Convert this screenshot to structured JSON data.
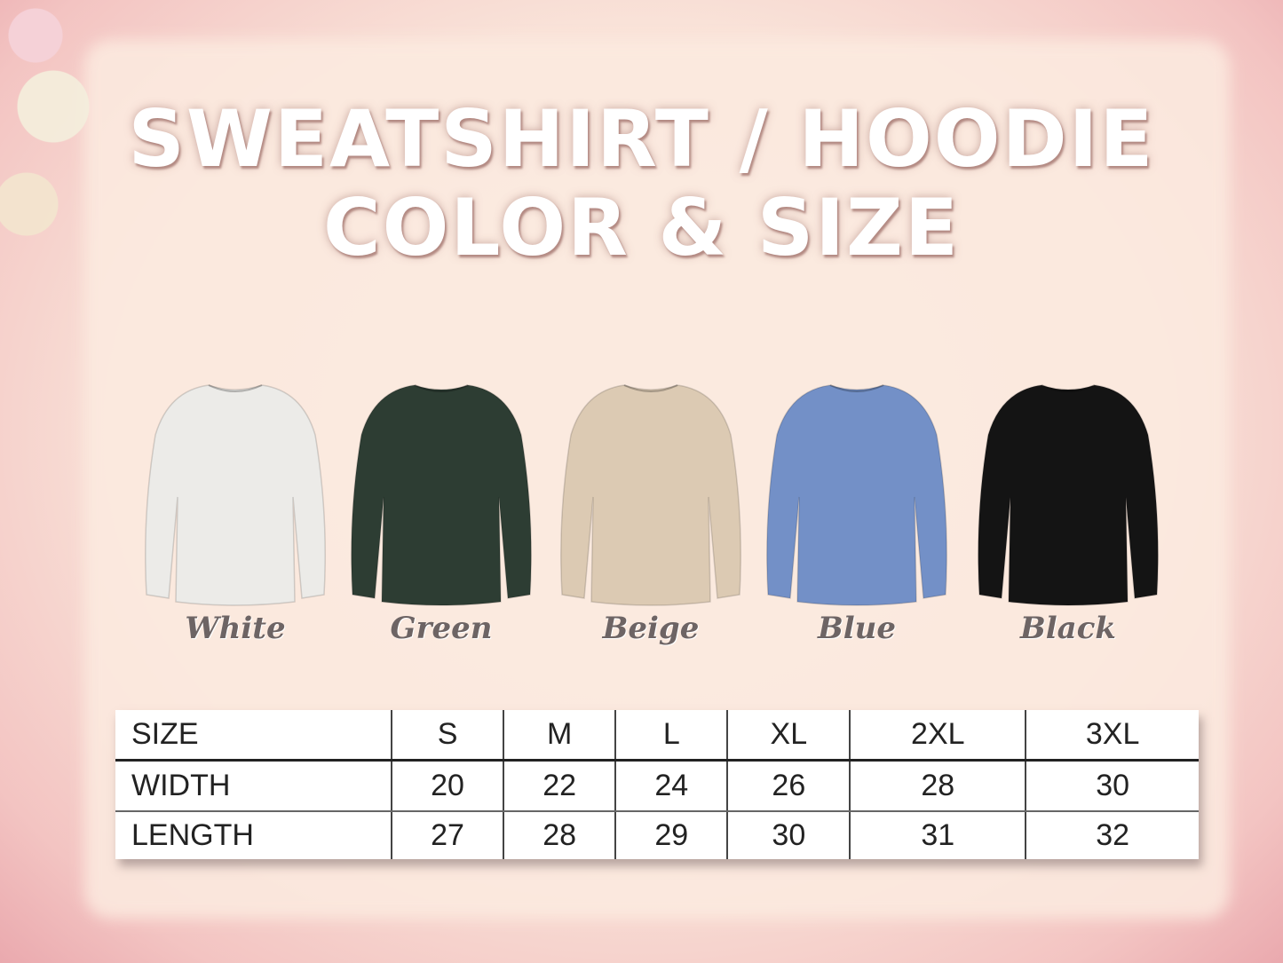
{
  "title": {
    "line1": "SWEATSHIRT / HOODIE",
    "line2": "COLOR & SIZE"
  },
  "colors": [
    {
      "label": "White",
      "hex": "#ecebe8"
    },
    {
      "label": "Green",
      "hex": "#2d3d33"
    },
    {
      "label": "Beige",
      "hex": "#dccab3"
    },
    {
      "label": "Blue",
      "hex": "#7390c7"
    },
    {
      "label": "Black",
      "hex": "#141414"
    }
  ],
  "size_table": {
    "headers": [
      "SIZE",
      "S",
      "M",
      "L",
      "XL",
      "2XL",
      "3XL"
    ],
    "rows": [
      [
        "WIDTH",
        "20",
        "22",
        "24",
        "26",
        "28",
        "30"
      ],
      [
        "LENGTH",
        "27",
        "28",
        "29",
        "30",
        "31",
        "32"
      ]
    ]
  }
}
